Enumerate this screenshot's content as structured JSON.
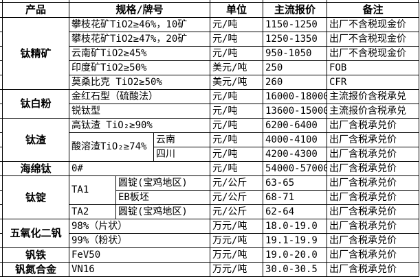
{
  "header": {
    "product": "产品",
    "spec": "规格/牌号",
    "unit": "单位",
    "price": "主流报价",
    "note": "备注"
  },
  "products": [
    {
      "label": "钛精矿"
    },
    {
      "label": "钛白粉"
    },
    {
      "label": "钛渣"
    },
    {
      "label": "海绵钛"
    },
    {
      "label": "钛锭"
    },
    {
      "label": "五氧化二钒"
    },
    {
      "label": "钒铁"
    },
    {
      "label": "钒氮合金"
    }
  ],
  "rows": [
    {
      "spec": "攀枝花矿TiO2≥46%，10矿",
      "unit": "元/吨",
      "price": "1150-1250",
      "note": "出厂不含税现金价"
    },
    {
      "spec": "攀枝花矿TiO2≥47%，20矿",
      "unit": "元/吨",
      "price": "1250-1350",
      "note": "出厂不含税现金价"
    },
    {
      "spec": "云南矿TiO2≥45%",
      "unit": "元/吨",
      "price": "950-1050",
      "note": "出厂不含税现金价"
    },
    {
      "spec": "印度矿TiO2≥50%",
      "unit": "美元/吨",
      "price": "250",
      "note": "FOB"
    },
    {
      "spec": "莫桑比克 TiO2≥50%",
      "unit": "美元/吨",
      "price": "260",
      "note": "CFR"
    },
    {
      "spec": "金红石型（硫酸法）",
      "unit": "元/吨",
      "price": "16000-18000",
      "note": "主流报价含税承兑"
    },
    {
      "spec": "锐钛型",
      "unit": "元/吨",
      "price": "13600-15000",
      "note": "主流报价含税承兑"
    },
    {
      "spec": "高钛渣 TiO₂≥90%",
      "unit": "元/吨",
      "price": "6200-6400",
      "note": "出厂含税承兑价"
    },
    {
      "spec": "酸溶渣TiO₂≥74%",
      "spec_sub": "云南",
      "unit": "元/吨",
      "price": "4000-4100",
      "note": "出厂含税承兑价"
    },
    {
      "spec_sub": "四川",
      "unit": "元/吨",
      "price": "4200-4300",
      "note": "出厂含税承兑价"
    },
    {
      "spec": "0#",
      "unit": "元/吨",
      "price": "54000-57000",
      "note": "出厂含税承兑价"
    },
    {
      "spec_a": "TA1",
      "spec_b": "圆锭(宝鸡地区)",
      "unit": "元/公斤",
      "price": "63-65",
      "note": "出厂含税承兑价"
    },
    {
      "spec_b": "EB板坯",
      "unit": "元/公斤",
      "price": "68-71",
      "note": "出厂含税承兑价"
    },
    {
      "spec_a": "TA2",
      "spec_b": "圆锭(宝鸡地区)",
      "unit": "元/公斤",
      "price": "62-64",
      "note": "出厂含税承兑价"
    },
    {
      "spec": "98%（片状）",
      "unit": "万元/吨",
      "price": "18.0-19.0",
      "note": "出厂含税承兑价"
    },
    {
      "spec": "99%（粉状）",
      "unit": "万元/吨",
      "price": "19.1-19.9",
      "note": "出厂含税承兑价"
    },
    {
      "spec": "FeV50",
      "unit": "万元/吨",
      "price": "19.0-20.0",
      "note": "出厂含税承兑价"
    },
    {
      "spec": "VN16",
      "unit": "万元/吨",
      "price": "30.0-30.5",
      "note": "出厂含税承兑价"
    }
  ],
  "chart_data": {
    "type": "table",
    "title": "",
    "columns": [
      "产品",
      "规格/牌号",
      "单位",
      "主流报价",
      "备注"
    ],
    "rows": [
      [
        "钛精矿",
        "攀枝花矿TiO2≥46%，10矿",
        "元/吨",
        "1150-1250",
        "出厂不含税现金价"
      ],
      [
        "钛精矿",
        "攀枝花矿TiO2≥47%，20矿",
        "元/吨",
        "1250-1350",
        "出厂不含税现金价"
      ],
      [
        "钛精矿",
        "云南矿TiO2≥45%",
        "元/吨",
        "950-1050",
        "出厂不含税现金价"
      ],
      [
        "钛精矿",
        "印度矿TiO2≥50%",
        "美元/吨",
        "250",
        "FOB"
      ],
      [
        "钛精矿",
        "莫桑比克 TiO2≥50%",
        "美元/吨",
        "260",
        "CFR"
      ],
      [
        "钛白粉",
        "金红石型（硫酸法）",
        "元/吨",
        "16000-18000",
        "主流报价含税承兑"
      ],
      [
        "钛白粉",
        "锐钛型",
        "元/吨",
        "13600-15000",
        "主流报价含税承兑"
      ],
      [
        "钛渣",
        "高钛渣 TiO₂≥90%",
        "元/吨",
        "6200-6400",
        "出厂含税承兑价"
      ],
      [
        "钛渣",
        "酸溶渣TiO₂≥74% 云南",
        "元/吨",
        "4000-4100",
        "出厂含税承兑价"
      ],
      [
        "钛渣",
        "酸溶渣TiO₂≥74% 四川",
        "元/吨",
        "4200-4300",
        "出厂含税承兑价"
      ],
      [
        "海绵钛",
        "0#",
        "元/吨",
        "54000-57000",
        "出厂含税承兑价"
      ],
      [
        "钛锭",
        "TA1 圆锭(宝鸡地区)",
        "元/公斤",
        "63-65",
        "出厂含税承兑价"
      ],
      [
        "钛锭",
        "TA1 EB板坯",
        "元/公斤",
        "68-71",
        "出厂含税承兑价"
      ],
      [
        "钛锭",
        "TA2 圆锭(宝鸡地区)",
        "元/公斤",
        "62-64",
        "出厂含税承兑价"
      ],
      [
        "五氧化二钒",
        "98%（片状）",
        "万元/吨",
        "18.0-19.0",
        "出厂含税承兑价"
      ],
      [
        "五氧化二钒",
        "99%（粉状）",
        "万元/吨",
        "19.1-19.9",
        "出厂含税承兑价"
      ],
      [
        "钒铁",
        "FeV50",
        "万元/吨",
        "19.0-20.0",
        "出厂含税承兑价"
      ],
      [
        "钒氮合金",
        "VN16",
        "万元/吨",
        "30.0-30.5",
        "出厂含税承兑价"
      ]
    ],
    "colors": {
      "border": "#000000",
      "background": "#ffffff",
      "text": "#000000"
    }
  }
}
